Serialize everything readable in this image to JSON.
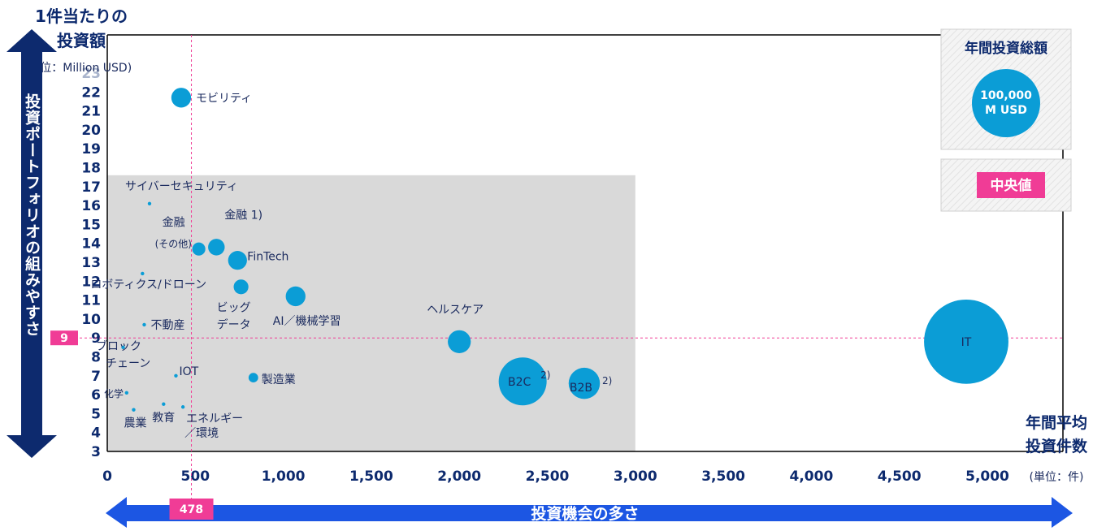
{
  "y_title_line1": "1件当たりの",
  "y_title_line2": "投資額",
  "y_unit": "(単位：Million USD)",
  "y_arrow_label": "投資ポートフォリオの組みやすさ",
  "x_title_line1": "年間平均",
  "x_title_line2": "投資件数",
  "x_unit": "(単位：件)",
  "x_arrow_label": "投資機会の多さ",
  "legend": {
    "total_title": "年間投資総額",
    "bubble_line1": "100,000",
    "bubble_line2": "M USD",
    "median_label": "中央値"
  },
  "median_x_label": "478",
  "median_y_label": "9",
  "colors": {
    "bubble": "#0b9dd6",
    "arrow": "#0d2a6e",
    "arrow_x": "#1c56e3",
    "median": "#f03c96",
    "shade": "#d9d9d9"
  },
  "chart_data": {
    "type": "scatter",
    "x_ticks": [
      "0",
      "500",
      "1,000",
      "1,500",
      "2,000",
      "2,500",
      "3,000",
      "3,500",
      "4,000",
      "4,500",
      "5,000"
    ],
    "y_ticks": [
      "3",
      "4",
      "5",
      "6",
      "7",
      "8",
      "9",
      "10",
      "11",
      "12",
      "13",
      "14",
      "15",
      "16",
      "17",
      "18",
      "19",
      "20",
      "21",
      "22",
      "23"
    ],
    "xlim": [
      0,
      5400
    ],
    "ylim": [
      3,
      23
    ],
    "median_x": 478,
    "median_y": 9,
    "shaded_region": {
      "x": [
        0,
        3000
      ],
      "y": [
        3,
        17.6
      ]
    },
    "points": [
      {
        "label": "モビリティ",
        "x": 420,
        "y": 21.7,
        "size": 3400
      },
      {
        "label": "サイバーセキュリティ",
        "x": 240,
        "y": 16.1,
        "size": 70
      },
      {
        "label": "金融",
        "note": "(その他)",
        "x": 520,
        "y": 13.7,
        "size": 1500
      },
      {
        "label": "金融 1)",
        "x": 620,
        "y": 13.8,
        "size": 2400
      },
      {
        "label": "FinTech",
        "x": 740,
        "y": 13.1,
        "size": 3100
      },
      {
        "label": "ロボティクス/ドローン",
        "x": 200,
        "y": 12.4,
        "size": 30
      },
      {
        "label": "ビッグ データ",
        "x": 760,
        "y": 11.7,
        "size": 1900
      },
      {
        "label": "AI／機械学習",
        "x": 1070,
        "y": 11.2,
        "size": 3400
      },
      {
        "label": "不動産",
        "x": 210,
        "y": 9.7,
        "size": 60
      },
      {
        "label": "ヘルスケア",
        "x": 2000,
        "y": 8.8,
        "size": 4600
      },
      {
        "label": "ブロック チェーン",
        "x": 90,
        "y": 8.5,
        "size": 10
      },
      {
        "label": "IT",
        "x": 4880,
        "y": 8.8,
        "size": 62000
      },
      {
        "label": "B2C 2)",
        "x": 2360,
        "y": 6.7,
        "size": 20000
      },
      {
        "label": "B2B 2)",
        "x": 2710,
        "y": 6.6,
        "size": 8500
      },
      {
        "label": "IOT",
        "x": 390,
        "y": 7.0,
        "size": 40
      },
      {
        "label": "製造業",
        "x": 830,
        "y": 6.9,
        "size": 800
      },
      {
        "label": "化学",
        "x": 110,
        "y": 6.1,
        "size": 5
      },
      {
        "label": "農業",
        "x": 150,
        "y": 5.2,
        "size": 5
      },
      {
        "label": "教育",
        "x": 320,
        "y": 5.5,
        "size": 40
      },
      {
        "label": "エネルギー ／環境",
        "x": 430,
        "y": 5.35,
        "size": 30
      }
    ]
  }
}
